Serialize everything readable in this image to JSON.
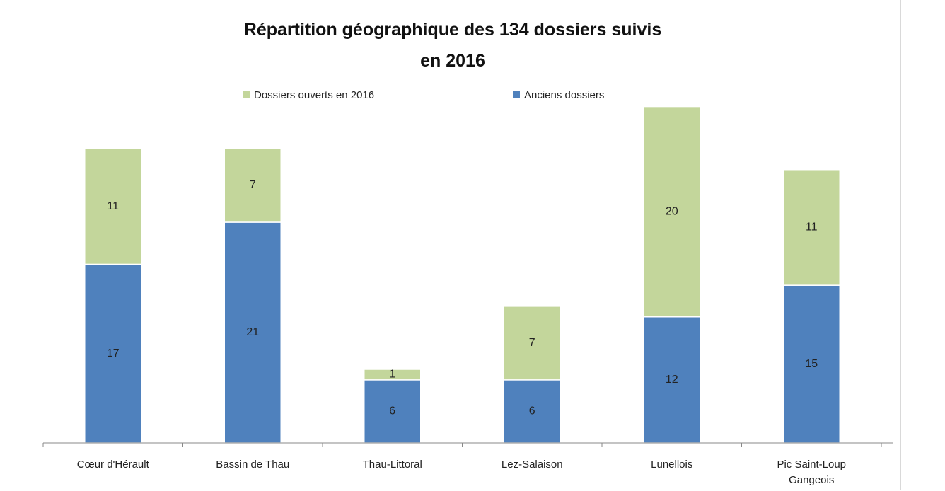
{
  "chart_data": {
    "type": "stacked_bar",
    "title": [
      "Répartition géographique des 134 dossiers suivis",
      "en 2016"
    ],
    "categories": [
      "Cœur d'Hérault",
      "Bassin de Thau",
      "Thau-Littoral",
      "Lez-Salaison",
      "Lunellois",
      "Pic Saint-Loup Gangeois"
    ],
    "series": [
      {
        "name": "Anciens dossiers",
        "color": "#4f81bd",
        "values": [
          17,
          21,
          6,
          6,
          12,
          15
        ]
      },
      {
        "name": "Dossiers ouverts en 2016",
        "color": "#c3d69b",
        "values": [
          11,
          7,
          1,
          7,
          20,
          11
        ]
      }
    ],
    "legend_order": [
      1,
      0
    ],
    "ylim": [
      0,
      35
    ]
  }
}
